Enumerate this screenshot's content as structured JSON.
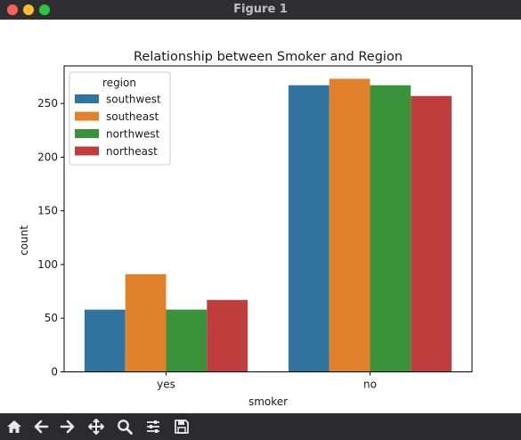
{
  "window": {
    "title": "Figure 1"
  },
  "chart_data": {
    "type": "bar",
    "title": "Relationship between Smoker and Region",
    "xlabel": "smoker",
    "ylabel": "count",
    "categories": [
      "yes",
      "no"
    ],
    "series": [
      {
        "name": "southwest",
        "color": "#3274a1",
        "values": [
          58,
          267
        ]
      },
      {
        "name": "southeast",
        "color": "#e1812c",
        "values": [
          91,
          273
        ]
      },
      {
        "name": "northwest",
        "color": "#3a923a",
        "values": [
          58,
          267
        ]
      },
      {
        "name": "northeast",
        "color": "#c03d3e",
        "values": [
          67,
          257
        ]
      }
    ],
    "ylim": [
      0,
      285
    ],
    "yticks": [
      0,
      50,
      100,
      150,
      200,
      250
    ],
    "legend": {
      "title": "region",
      "placement": "upper-left"
    },
    "grid": false
  },
  "toolbar": {
    "icons": [
      "home-icon",
      "back-arrow-icon",
      "forward-arrow-icon",
      "pan-icon",
      "zoom-icon",
      "configure-subplots-icon",
      "save-icon"
    ]
  }
}
